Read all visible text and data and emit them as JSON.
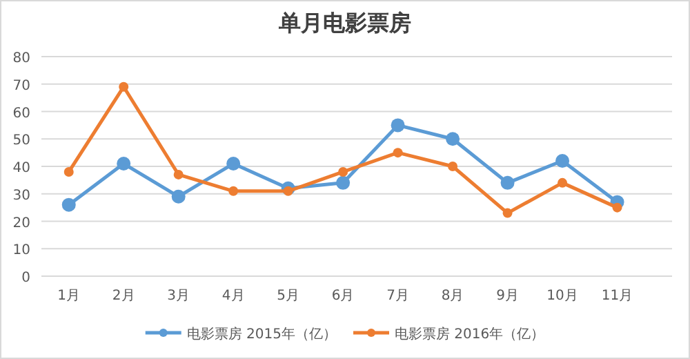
{
  "chart_data": {
    "type": "line",
    "title": "单月电影票房",
    "categories": [
      "1月",
      "2月",
      "3月",
      "4月",
      "5月",
      "6月",
      "7月",
      "8月",
      "9月",
      "10月",
      "11月"
    ],
    "series": [
      {
        "name": "电影票房 2015年（亿）",
        "color": "#5b9bd5",
        "values": [
          26,
          41,
          29,
          41,
          32,
          34,
          55,
          50,
          34,
          42,
          27
        ]
      },
      {
        "name": "电影票房 2016年（亿）",
        "color": "#ed7d31",
        "values": [
          38,
          69,
          37,
          31,
          31,
          38,
          45,
          40,
          23,
          34,
          25
        ]
      }
    ],
    "ylim": [
      0,
      80
    ],
    "yticks": [
      0,
      10,
      20,
      30,
      40,
      50,
      60,
      70,
      80
    ],
    "grid": "y",
    "legend": "bottom",
    "marker": "circle",
    "line_style": "solid"
  }
}
